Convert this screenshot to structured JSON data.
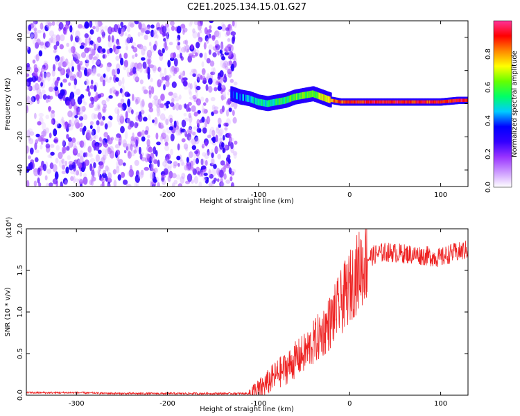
{
  "title": "C2E1.2025.134.15.01.G27",
  "chart_data": [
    {
      "type": "heatmap",
      "title": "C2E1.2025.134.15.01.G27",
      "xlabel": "Height of straight line (km)",
      "ylabel": "Frequency (Hz)",
      "xlim": [
        -355,
        130
      ],
      "ylim": [
        -50,
        50
      ],
      "x_ticks": [
        -300,
        -200,
        -100,
        0,
        100
      ],
      "y_ticks": [
        -40,
        -20,
        0,
        20,
        40
      ],
      "colorbar": {
        "label": "Normalized spectral amplitude",
        "range": [
          0.0,
          1.0
        ],
        "ticks": [
          0.0,
          0.2,
          0.4,
          0.6,
          0.8
        ],
        "colormap": [
          "#ffffff",
          "#cc99ff",
          "#9933ff",
          "#3300ff",
          "#0000ff",
          "#00ccff",
          "#00ff66",
          "#66ff00",
          "#ffff00",
          "#ff8800",
          "#ff0000",
          "#ff3399"
        ]
      },
      "signal_track": {
        "x": [
          -130,
          -120,
          -110,
          -100,
          -90,
          -80,
          -70,
          -60,
          -50,
          -40,
          -30,
          -20,
          -10,
          0,
          20,
          40,
          60,
          80,
          100,
          120,
          130
        ],
        "frequency": [
          6,
          4,
          3,
          1,
          0,
          1,
          2,
          4,
          5,
          6,
          4,
          2,
          1,
          1,
          1,
          1,
          1,
          1,
          1,
          2,
          2
        ],
        "amplitude": [
          0.35,
          0.4,
          0.45,
          0.5,
          0.5,
          0.55,
          0.55,
          0.6,
          0.6,
          0.6,
          0.7,
          0.8,
          0.85,
          0.9,
          0.92,
          0.92,
          0.92,
          0.9,
          0.9,
          0.92,
          0.9
        ]
      },
      "noise_region_x": [
        -355,
        -125
      ]
    },
    {
      "type": "line",
      "xlabel": "Height of straight line (km)",
      "ylabel": "SNR (10 * v/v)",
      "y_multiplier": "(x10⁴)",
      "xlim": [
        -355,
        130
      ],
      "ylim": [
        0.0,
        2.0
      ],
      "x_ticks": [
        -300,
        -200,
        -100,
        0,
        100
      ],
      "y_ticks": [
        0.0,
        0.5,
        1.0,
        1.5,
        2.0
      ],
      "color": "#ee2222",
      "series": [
        {
          "x": [
            -355,
            -300,
            -250,
            -200,
            -150,
            -110,
            -100,
            -90,
            -80,
            -70,
            -60,
            -50,
            -40,
            -30,
            -20,
            -10,
            0,
            10,
            20,
            30,
            40,
            60,
            80,
            100,
            110,
            120,
            130
          ],
          "y": [
            0.03,
            0.03,
            0.02,
            0.02,
            0.02,
            0.02,
            0.06,
            0.15,
            0.25,
            0.32,
            0.42,
            0.5,
            0.62,
            0.75,
            0.9,
            1.1,
            1.3,
            1.5,
            1.65,
            1.7,
            1.72,
            1.7,
            1.68,
            1.65,
            1.7,
            1.72,
            1.75
          ]
        }
      ]
    }
  ]
}
